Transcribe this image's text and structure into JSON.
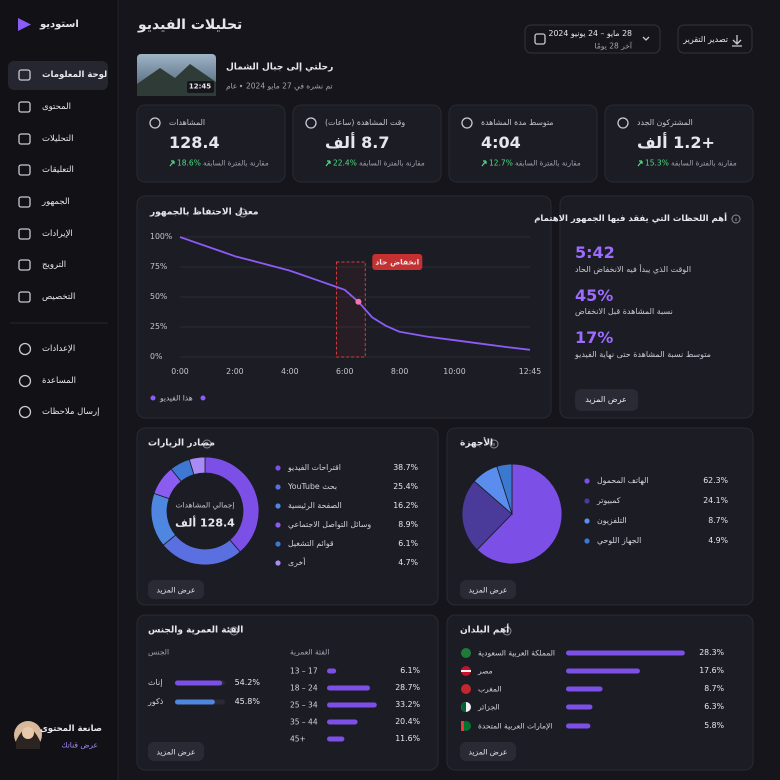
{
  "sidebar": {
    "brand": "استوديو",
    "nav": [
      "لوحة المعلومات",
      "المحتوى",
      "التحليلات",
      "التعليقات",
      "الجمهور",
      "الإيرادات",
      "الترويج",
      "التخصيص"
    ],
    "secondary": [
      "الإعدادات",
      "المساعدة",
      "إرسال ملاحظات"
    ],
    "user": {
      "name": "صانعة المحتوى",
      "link": "عرض قناتك"
    }
  },
  "header": {
    "title": "تحليلات الفيديو",
    "date_range": "28 مايو – 24 يونيو 2024",
    "date_period": "آخر 28 يومًا",
    "export": "تصدير التقرير"
  },
  "video": {
    "title": "رحلتي إلى جبال الشمال",
    "published": "تم نشره في 27 مايو 2024",
    "visibility": "عام",
    "duration": "12:45"
  },
  "kpis": [
    {
      "label": "المشاهدات",
      "value": "128.4",
      "change": "18.6%",
      "note": "مقارنة بالفترة السابقة"
    },
    {
      "label": "وقت المشاهدة (ساعات)",
      "value": "8.7 ألف",
      "change": "22.4%",
      "note": "مقارنة بالفترة السابقة"
    },
    {
      "label": "متوسط مدة المشاهدة",
      "value": "4:04",
      "change": "12.7%",
      "note": "مقارنة بالفترة السابقة"
    },
    {
      "label": "المشتركون الجدد",
      "value": "+1.2 ألف",
      "change": "15.3%",
      "note": "مقارنة بالفترة السابقة"
    }
  ],
  "retention": {
    "type": "line",
    "title": "معدل الاحتفاظ بالجمهور",
    "legend": "هذا الفيديو",
    "color": "#8b5cf6",
    "x": [
      0,
      30,
      60,
      90,
      120,
      150,
      180,
      210,
      240,
      270,
      300,
      330,
      360,
      390,
      420,
      450,
      480,
      540,
      600,
      660,
      720,
      765
    ],
    "values": [
      100,
      96,
      92,
      88,
      84,
      81,
      78,
      75,
      72,
      68,
      64,
      60,
      56,
      46,
      33,
      26,
      21,
      17,
      14,
      11,
      8,
      6
    ],
    "xlim": [
      0,
      765
    ],
    "xticks": [
      {
        "value": 0,
        "label": "0:00"
      },
      {
        "value": 120,
        "label": "2:00"
      },
      {
        "value": 240,
        "label": "4:00"
      },
      {
        "value": 360,
        "label": "6:00"
      },
      {
        "value": 480,
        "label": "8:00"
      },
      {
        "value": 600,
        "label": "10:00"
      },
      {
        "value": 765,
        "label": "12:45"
      }
    ],
    "ylim": [
      0,
      100
    ],
    "yticks": [
      {
        "value": 0,
        "label": "0%"
      },
      {
        "value": 25,
        "label": "25%"
      },
      {
        "value": 50,
        "label": "50%"
      },
      {
        "value": 75,
        "label": "75%"
      },
      {
        "value": 100,
        "label": "100%"
      }
    ],
    "grid": true,
    "annotation": "انخفاض حاد",
    "highlight": [
      342,
      405
    ]
  },
  "moments": {
    "title": "أهم اللحظات التي يفقد فيها الجمهور الاهتمام",
    "items": [
      {
        "value": "5:42",
        "label": "الوقت الذي يبدأ فيه الانخفاض الحاد"
      },
      {
        "value": "45%",
        "label": "نسبة المشاهدة قبل الانخفاض"
      },
      {
        "value": "17%",
        "label": "متوسط نسبة المشاهدة حتى نهاية الفيديو"
      }
    ],
    "button": "عرض المزيد"
  },
  "traffic_sources": {
    "type": "donut",
    "title": "مصادر الزيارات",
    "center_label": "إجمالي المشاهدات",
    "center_value": "128.4 ألف",
    "categories": [
      "اقتراحات الفيديو",
      "بحث YouTube",
      "الصفحة الرئيسية",
      "وسائل التواصل الاجتماعي",
      "قوائم التشغيل",
      "أخرى"
    ],
    "values": [
      38.7,
      25.4,
      16.2,
      8.9,
      6.1,
      4.7
    ],
    "value_labels": [
      "38.7%",
      "25.4%",
      "16.2%",
      "8.9%",
      "6.1%",
      "4.7%"
    ],
    "colors": [
      "#7c4fe6",
      "#5a6fe0",
      "#4f86e0",
      "#8a5cf0",
      "#3f78d2",
      "#a98bf5"
    ],
    "button": "عرض المزيد"
  },
  "devices": {
    "type": "pie",
    "title": "الأجهزة",
    "categories": [
      "الهاتف المحمول",
      "كمبيوتر",
      "التلفزيون",
      "الجهاز اللوحي"
    ],
    "values": [
      62.3,
      24.1,
      8.7,
      4.9
    ],
    "value_labels": [
      "62.3%",
      "24.1%",
      "8.7%",
      "4.9%"
    ],
    "colors": [
      "#7c4fe6",
      "#4a3a9a",
      "#5b8def",
      "#3b78cf"
    ],
    "button": "عرض المزيد"
  },
  "age_gender": {
    "title": "الفئة العمرية والجنس",
    "gender": {
      "title": "الجنس",
      "categories": [
        "إناث",
        "ذكور"
      ],
      "values": [
        54.2,
        45.8
      ],
      "value_labels": [
        "54.2%",
        "45.8%"
      ],
      "colors": [
        "#7c4fe6",
        "#4f86e0"
      ]
    },
    "age": {
      "title": "الفئة العمرية",
      "categories": [
        "13 – 17",
        "18 – 24",
        "25 – 34",
        "35 – 44",
        "45+"
      ],
      "values": [
        6.1,
        28.7,
        33.2,
        20.4,
        11.6
      ],
      "value_labels": [
        "6.1%",
        "28.7%",
        "33.2%",
        "20.4%",
        "11.6%"
      ],
      "color": "#7c4fe6"
    },
    "button": "عرض المزيد"
  },
  "countries": {
    "title": "أهم البلدان",
    "categories": [
      "المملكة العربية السعودية",
      "مصر",
      "المغرب",
      "الجزائر",
      "الإمارات العربية المتحدة"
    ],
    "values": [
      28.3,
      17.6,
      8.7,
      6.3,
      5.8
    ],
    "value_labels": [
      "28.3%",
      "17.6%",
      "8.7%",
      "6.3%",
      "5.8%"
    ],
    "color": "#7c4fe6",
    "button": "عرض المزيد"
  }
}
